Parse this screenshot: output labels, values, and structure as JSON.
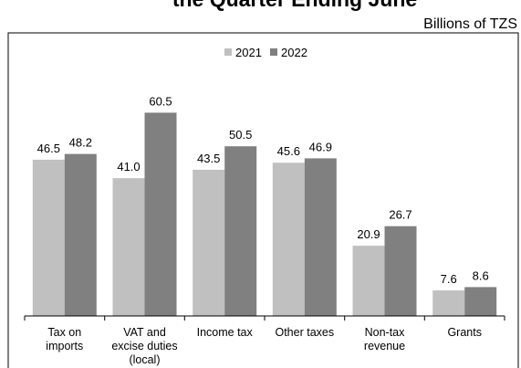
{
  "chart_data": {
    "type": "bar",
    "title": "the Quarter Ending June",
    "unit_label": "Billions of TZS",
    "categories": [
      "Tax on imports",
      "VAT and excise duties (local)",
      "Income tax",
      "Other taxes",
      "Non-tax revenue",
      "Grants"
    ],
    "category_lines": [
      [
        "Tax on",
        "imports"
      ],
      [
        "VAT and",
        "excise duties",
        "(local)"
      ],
      [
        "Income tax"
      ],
      [
        "Other taxes"
      ],
      [
        "Non-tax",
        "revenue"
      ],
      [
        "Grants"
      ]
    ],
    "series": [
      {
        "name": "2021",
        "color": "#c0c0c0",
        "values": [
          46.5,
          41.0,
          43.5,
          45.6,
          20.9,
          7.6
        ],
        "labels": [
          "46.5",
          "41.0",
          "43.5",
          "45.6",
          "20.9",
          "7.6"
        ]
      },
      {
        "name": "2022",
        "color": "#808080",
        "values": [
          48.2,
          60.5,
          50.5,
          46.9,
          26.7,
          8.6
        ],
        "labels": [
          "48.2",
          "60.5",
          "50.5",
          "46.9",
          "26.7",
          "8.6"
        ]
      }
    ],
    "xlabel": "",
    "ylabel": "",
    "ylim": [
      0,
      70
    ],
    "grid": false,
    "legend_position": "top-center"
  }
}
